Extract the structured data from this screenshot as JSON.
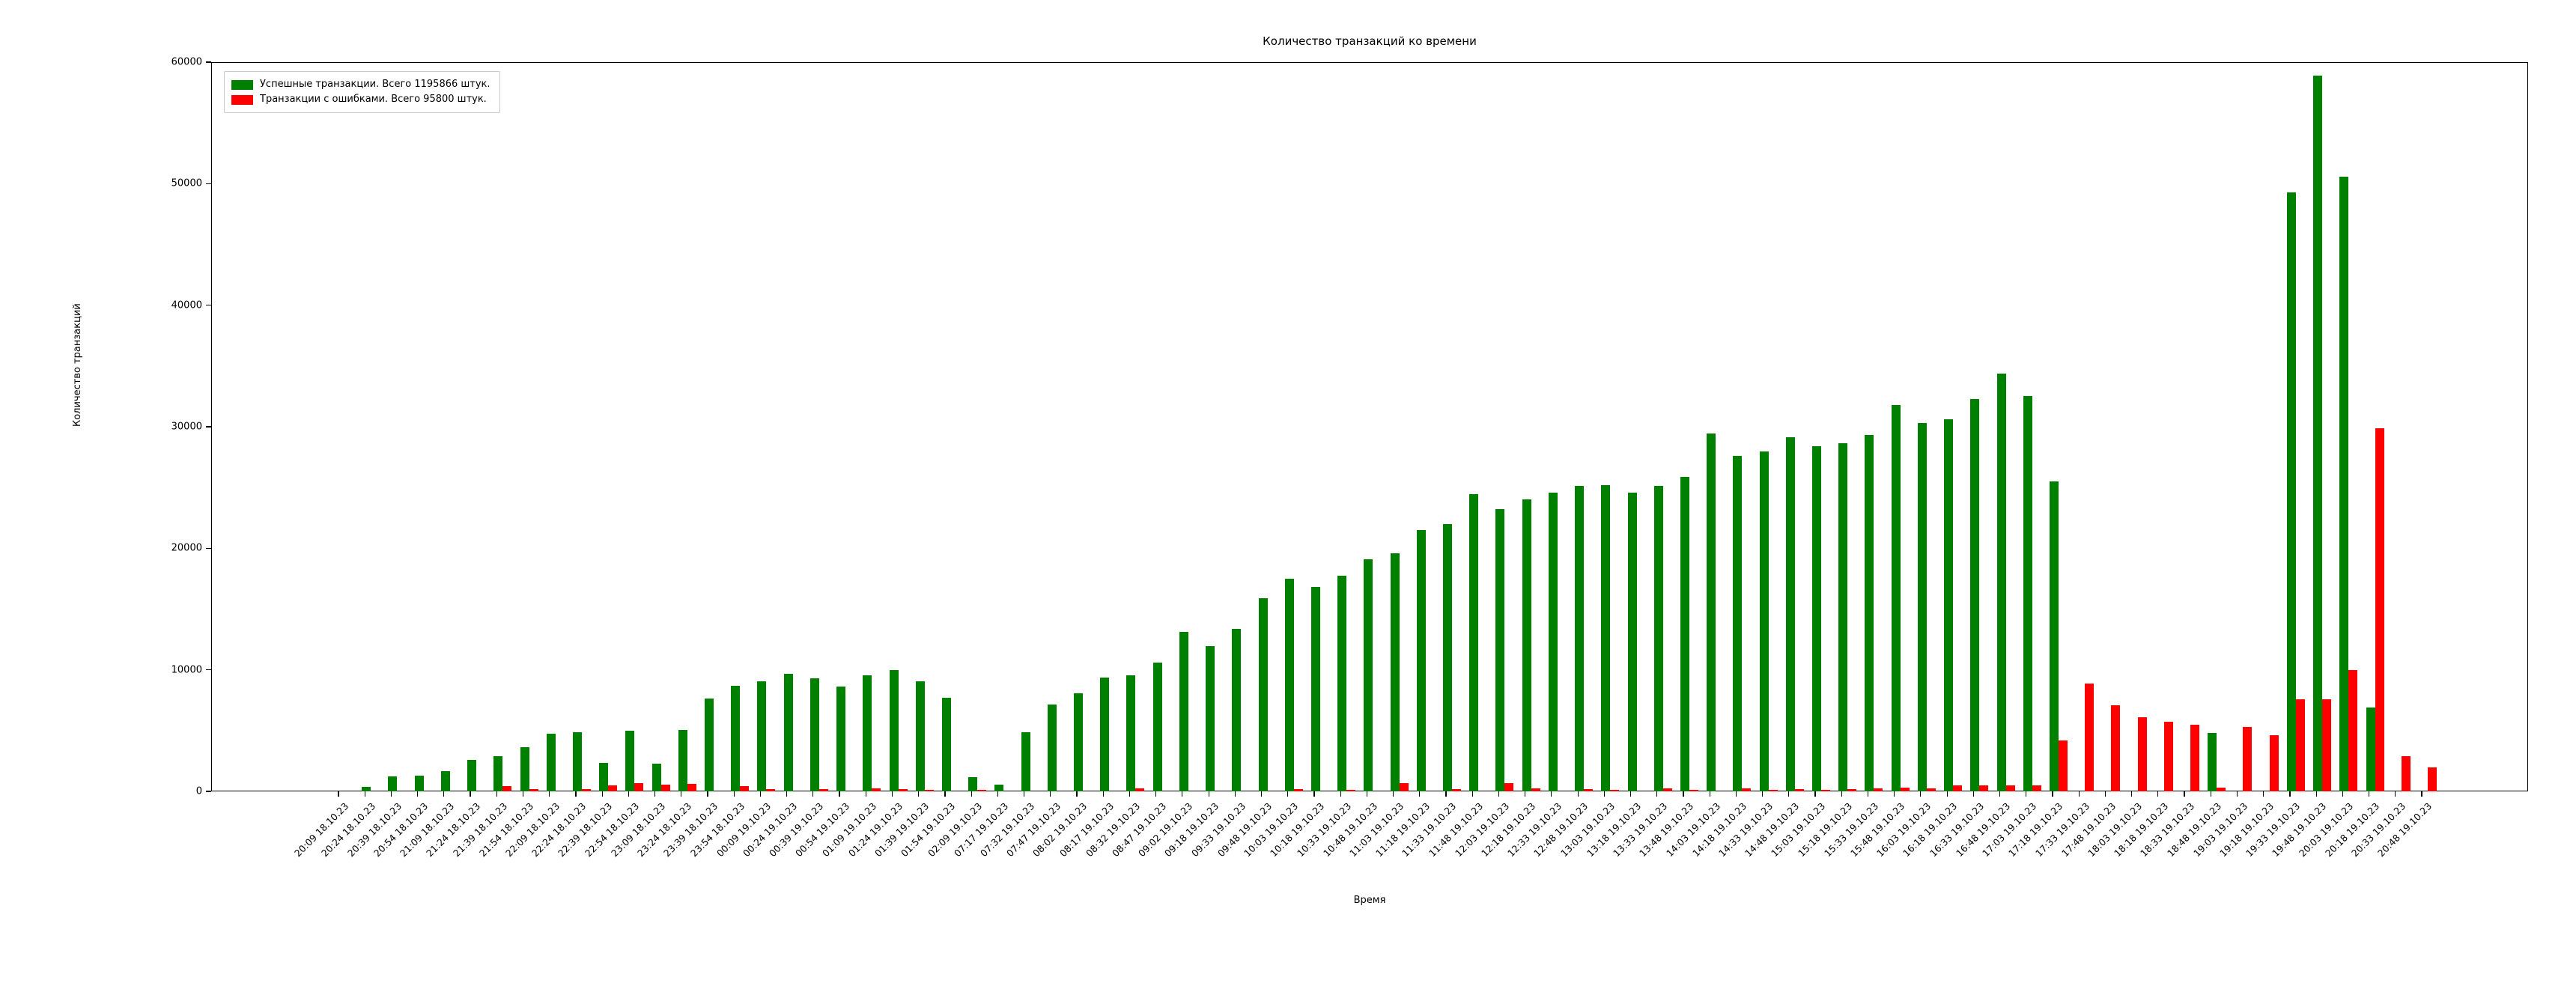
{
  "title": "Количество транзакций ко времени",
  "axes": {
    "x_label": "Время",
    "y_label": "Количество транзакций"
  },
  "legend": {
    "success_label": "Успешные транзакции. Всего 1195866 штук.",
    "error_label": "Транзакции с ошибками. Всего 95800 штук."
  },
  "colors": {
    "success": "#008000",
    "error": "#ff0000",
    "axis": "#000000",
    "legend_border": "#c9c9c9",
    "background": "#ffffff"
  },
  "chart_data": {
    "type": "bar",
    "title": "Количество транзакций ко времени",
    "xlabel": "Время",
    "ylabel": "Количество транзакций",
    "ylim": [
      0,
      60000
    ],
    "y_ticks": [
      0,
      10000,
      20000,
      30000,
      40000,
      50000,
      60000
    ],
    "grid": false,
    "legend_position": "upper left",
    "categories": [
      "20:09 18.10.23",
      "20:24 18.10.23",
      "20:39 18.10.23",
      "20:54 18.10.23",
      "21:09 18.10.23",
      "21:24 18.10.23",
      "21:39 18.10.23",
      "21:54 18.10.23",
      "22:09 18.10.23",
      "22:24 18.10.23",
      "22:39 18.10.23",
      "22:54 18.10.23",
      "23:09 18.10.23",
      "23:24 18.10.23",
      "23:39 18.10.23",
      "23:54 18.10.23",
      "00:09 19.10.23",
      "00:24 19.10.23",
      "00:39 19.10.23",
      "00:54 19.10.23",
      "01:09 19.10.23",
      "01:24 19.10.23",
      "01:39 19.10.23",
      "01:54 19.10.23",
      "02:09 19.10.23",
      "07:17 19.10.23",
      "07:32 19.10.23",
      "07:47 19.10.23",
      "08:02 19.10.23",
      "08:17 19.10.23",
      "08:32 19.10.23",
      "08:47 19.10.23",
      "09:02 19.10.23",
      "09:18 19.10.23",
      "09:33 19.10.23",
      "09:48 19.10.23",
      "10:03 19.10.23",
      "10:18 19.10.23",
      "10:33 19.10.23",
      "10:48 19.10.23",
      "11:03 19.10.23",
      "11:18 19.10.23",
      "11:33 19.10.23",
      "11:48 19.10.23",
      "12:03 19.10.23",
      "12:18 19.10.23",
      "12:33 19.10.23",
      "12:48 19.10.23",
      "13:03 19.10.23",
      "13:18 19.10.23",
      "13:33 19.10.23",
      "13:48 19.10.23",
      "14:03 19.10.23",
      "14:18 19.10.23",
      "14:33 19.10.23",
      "14:48 19.10.23",
      "15:03 19.10.23",
      "15:18 19.10.23",
      "15:33 19.10.23",
      "15:48 19.10.23",
      "16:03 19.10.23",
      "16:18 19.10.23",
      "16:33 19.10.23",
      "16:48 19.10.23",
      "17:03 19.10.23",
      "17:18 19.10.23",
      "17:33 19.10.23",
      "17:48 19.10.23",
      "18:03 19.10.23",
      "18:18 19.10.23",
      "18:33 19.10.23",
      "18:48 19.10.23",
      "19:03 19.10.23",
      "19:18 19.10.23",
      "19:33 19.10.23",
      "19:48 19.10.23",
      "20:03 19.10.23",
      "20:18 19.10.23",
      "20:33 19.10.23",
      "20:48 19.10.23"
    ],
    "series": [
      {
        "name": "Успешные транзакции. Всего 1195866 штук.",
        "color": "#008000",
        "values": [
          0,
          350,
          1220,
          1320,
          1680,
          2560,
          2890,
          3650,
          4720,
          4860,
          2350,
          5010,
          2310,
          5030,
          7630,
          8680,
          9040,
          9700,
          9290,
          8620,
          9520,
          9960,
          9080,
          7720,
          1190,
          550,
          4840,
          7170,
          8050,
          9350,
          9520,
          10570,
          13100,
          11970,
          13350,
          15910,
          17480,
          16790,
          17720,
          19120,
          19600,
          21490,
          21990,
          24450,
          23230,
          24050,
          24590,
          25140,
          25180,
          24570,
          25120,
          25850,
          29440,
          27610,
          27990,
          29160,
          28430,
          28620,
          29310,
          31760,
          30290,
          30600,
          32300,
          34400,
          32500,
          25500,
          0,
          0,
          0,
          0,
          0,
          4800,
          0,
          0,
          49300,
          58900,
          50600,
          6900,
          0,
          0
        ]
      },
      {
        "name": "Транзакции с ошибками. Всего 95800 штук.",
        "color": "#ff0000",
        "values": [
          0,
          0,
          0,
          0,
          0,
          0,
          420,
          170,
          0,
          170,
          520,
          670,
          570,
          630,
          0,
          460,
          170,
          0,
          200,
          0,
          230,
          170,
          150,
          0,
          100,
          0,
          0,
          0,
          0,
          0,
          230,
          0,
          0,
          0,
          0,
          0,
          200,
          0,
          150,
          0,
          700,
          0,
          200,
          0,
          700,
          250,
          0,
          200,
          150,
          0,
          250,
          150,
          0,
          250,
          150,
          200,
          150,
          200,
          250,
          300,
          250,
          480,
          480,
          480,
          480,
          4200,
          8900,
          7100,
          6100,
          5700,
          5500,
          300,
          5300,
          4600,
          7600,
          7600,
          10000,
          29900,
          2900,
          2000
        ]
      }
    ]
  }
}
